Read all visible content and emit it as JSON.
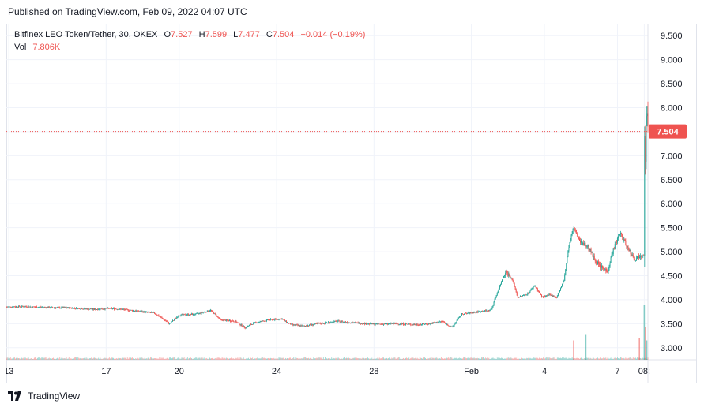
{
  "header": {
    "published": "Published on TradingView.com, Feb 09, 2022 04:07 UTC"
  },
  "legend": {
    "symbol": "Bitfinex LEO Token/Tether, 30, OKEX",
    "o_label": "O",
    "o_value": "7.527",
    "h_label": "H",
    "h_value": "7.599",
    "l_label": "L",
    "l_value": "7.477",
    "c_label": "C",
    "c_value": "7.504",
    "change": "−0.014 (−0.19%)",
    "vol_label": "Vol",
    "vol_value": "7.806K"
  },
  "footer": {
    "brand": "TradingView"
  },
  "colors": {
    "up": "#26a69a",
    "down": "#ef5350",
    "grid": "#f0f3fa",
    "text": "#131722",
    "price_line": "#ef5350"
  },
  "chart_data": {
    "type": "candlestick",
    "symbol": "Bitfinex LEO Token/Tether, 30, OKEX",
    "current_price": 7.504,
    "current_price_label": "7.504",
    "y_ticks": [
      "3.000",
      "3.500",
      "4.000",
      "4.500",
      "5.000",
      "5.500",
      "6.000",
      "6.500",
      "7.000",
      "7.500",
      "8.000",
      "8.500",
      "9.000",
      "9.500"
    ],
    "ylim": [
      2.75,
      9.75
    ],
    "x_ticks": [
      {
        "label": "13",
        "day": 13
      },
      {
        "label": "17",
        "day": 17
      },
      {
        "label": "20",
        "day": 20
      },
      {
        "label": "24",
        "day": 24
      },
      {
        "label": "28",
        "day": 28
      },
      {
        "label": "Feb",
        "day": 32
      },
      {
        "label": "4",
        "day": 35
      },
      {
        "label": "7",
        "day": 38
      },
      {
        "label": "08:",
        "day": 39.1
      }
    ],
    "xlim": [
      12.9,
      39.25
    ],
    "price_path": [
      [
        12.9,
        3.85
      ],
      [
        13.5,
        3.86
      ],
      [
        14.5,
        3.84
      ],
      [
        15.5,
        3.83
      ],
      [
        16.5,
        3.8
      ],
      [
        17.2,
        3.82
      ],
      [
        18,
        3.78
      ],
      [
        19,
        3.72
      ],
      [
        19.6,
        3.5
      ],
      [
        20,
        3.68
      ],
      [
        20.7,
        3.7
      ],
      [
        21.3,
        3.78
      ],
      [
        21.7,
        3.58
      ],
      [
        22.3,
        3.55
      ],
      [
        22.7,
        3.42
      ],
      [
        23.1,
        3.52
      ],
      [
        23.7,
        3.58
      ],
      [
        24.2,
        3.6
      ],
      [
        24.6,
        3.48
      ],
      [
        25.1,
        3.45
      ],
      [
        25.7,
        3.5
      ],
      [
        26.5,
        3.55
      ],
      [
        27.2,
        3.52
      ],
      [
        28,
        3.49
      ],
      [
        29,
        3.5
      ],
      [
        29.7,
        3.48
      ],
      [
        30.3,
        3.5
      ],
      [
        30.8,
        3.55
      ],
      [
        31.2,
        3.42
      ],
      [
        31.6,
        3.7
      ],
      [
        32.3,
        3.75
      ],
      [
        32.8,
        3.78
      ],
      [
        33.1,
        4.2
      ],
      [
        33.4,
        4.6
      ],
      [
        33.7,
        4.4
      ],
      [
        33.9,
        4.05
      ],
      [
        34.3,
        4.12
      ],
      [
        34.6,
        4.3
      ],
      [
        34.9,
        4.05
      ],
      [
        35.2,
        4.1
      ],
      [
        35.5,
        4.05
      ],
      [
        35.8,
        4.4
      ],
      [
        36.0,
        5.1
      ],
      [
        36.2,
        5.5
      ],
      [
        36.5,
        5.2
      ],
      [
        36.8,
        5.1
      ],
      [
        37.1,
        4.8
      ],
      [
        37.4,
        4.65
      ],
      [
        37.6,
        4.6
      ],
      [
        37.8,
        5.0
      ],
      [
        38.1,
        5.4
      ],
      [
        38.4,
        5.1
      ],
      [
        38.7,
        4.85
      ],
      [
        39.0,
        4.95
      ],
      [
        39.1,
        4.95
      ],
      [
        39.1,
        6.8
      ],
      [
        39.1,
        7.7
      ],
      [
        39.15,
        7.0
      ],
      [
        39.2,
        8.2
      ],
      [
        39.25,
        7.5
      ]
    ],
    "volume_spikes": [
      {
        "day": 36.2,
        "value": 0.35
      },
      {
        "day": 36.7,
        "value": 0.45
      },
      {
        "day": 38.9,
        "value": 0.4
      },
      {
        "day": 39.1,
        "value": 1.0
      },
      {
        "day": 39.15,
        "value": 0.6
      },
      {
        "day": 39.2,
        "value": 0.35
      }
    ]
  }
}
